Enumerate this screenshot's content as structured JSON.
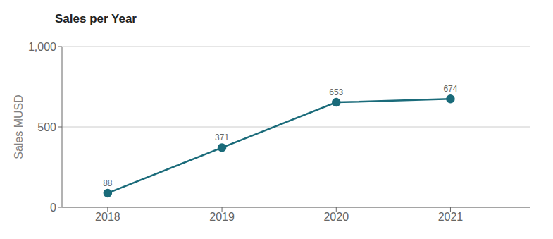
{
  "chart_data": {
    "type": "line",
    "title": "Sales per Year",
    "ylabel": "Sales MUSD",
    "x": [
      2018,
      2019,
      2020,
      2021
    ],
    "values": [
      88,
      371,
      653,
      674
    ],
    "color": "#1a6b7a",
    "xlim": [
      2017.6,
      2021.7
    ],
    "xticks": [
      2018,
      2019,
      2020,
      2021
    ],
    "ylim": [
      0,
      1000
    ],
    "yticks": [
      0,
      500,
      {
        "value": 1000,
        "label": "1,000"
      }
    ],
    "grid": true,
    "data_labels": true,
    "marker": "circle"
  }
}
